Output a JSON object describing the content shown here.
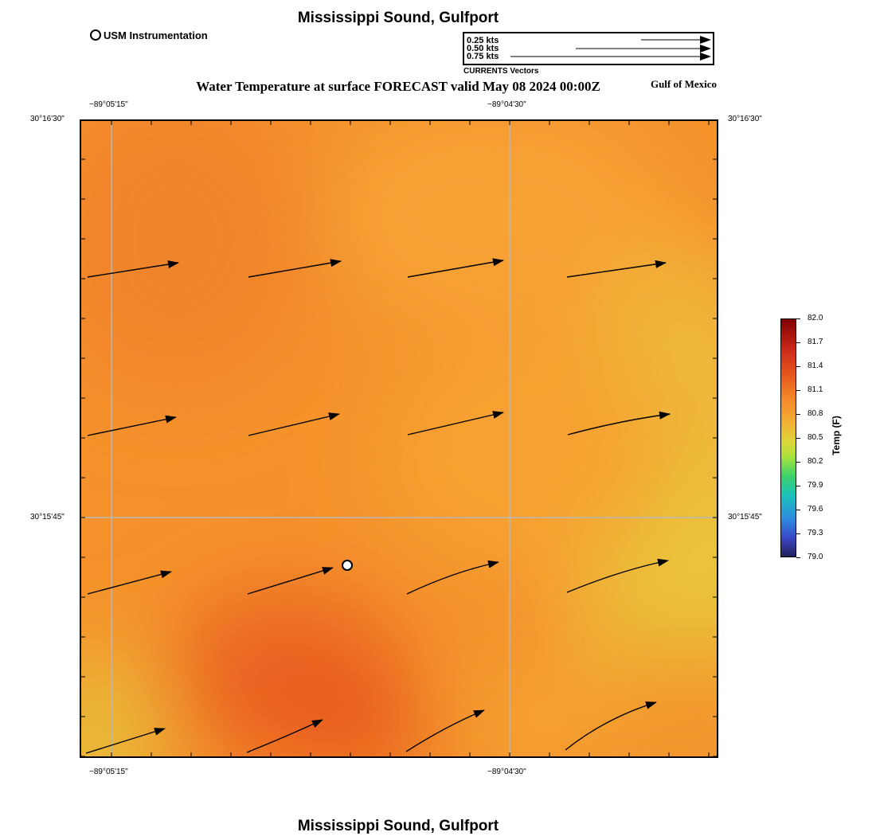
{
  "header": {
    "title": "Mississippi Sound, Gulfport",
    "subtitle": "Water Temperature at surface FORECAST valid May 08 2024 00:00Z",
    "region": "Gulf of Mexico",
    "footer_title": "Mississippi Sound, Gulfport"
  },
  "station_legend": {
    "label": "USM Instrumentation"
  },
  "vector_legend": {
    "entries": [
      "0.25 kts",
      "0.50 kts",
      "0.75 kts"
    ],
    "speeds_kts": [
      0.25,
      0.5,
      0.75
    ],
    "caption": "CURRENTS Vectors"
  },
  "map": {
    "longitude_labels": [
      "−89°05'15\"",
      "−89°04'30\""
    ],
    "latitude_labels": [
      "30°16'30\"",
      "30°15'45\""
    ],
    "longitude_ticks_deg": [
      -89.0875,
      -89.075
    ],
    "latitude_ticks_deg": [
      30.275,
      30.2625
    ],
    "station_marker": "usm-instrumentation-station"
  },
  "colorbar": {
    "label": "Temp (F)",
    "ticks": [
      "82.0",
      "81.7",
      "81.4",
      "81.1",
      "80.8",
      "80.5",
      "80.2",
      "79.9",
      "79.6",
      "79.3",
      "79.0"
    ],
    "min": 79.0,
    "max": 82.0,
    "colors": [
      "#7f0000",
      "#c8261a",
      "#e85a1c",
      "#f58a2a",
      "#f0b234",
      "#dcd638",
      "#a8e23c",
      "#3ed26a",
      "#1cc2b8",
      "#2c8ce0",
      "#3a48c8",
      "#23205c"
    ]
  }
}
